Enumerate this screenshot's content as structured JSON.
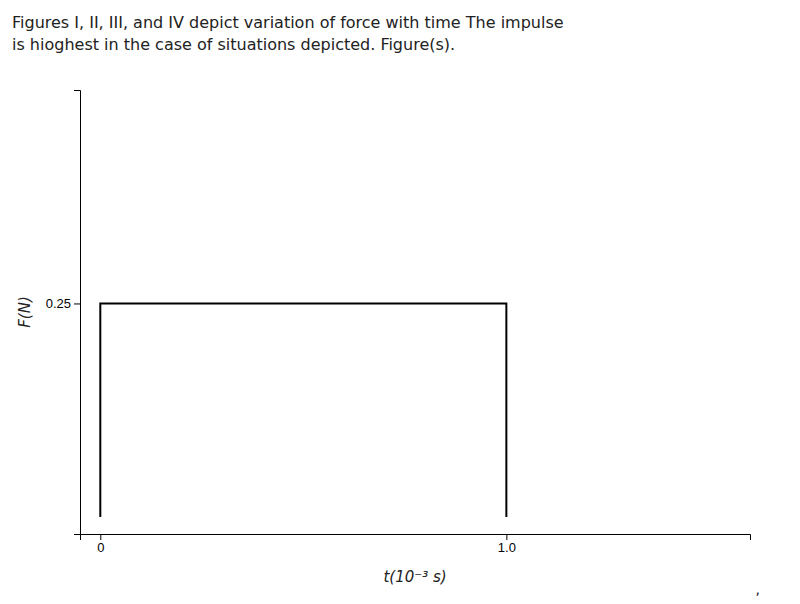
{
  "chart_data": {
    "type": "line",
    "title": "Figures I, II, III, and IV depict variation of force with time The impulse\nis hioghest in the case of situations depicted. Figure(s).",
    "x_label": "t(10⁻³ s)",
    "y_label": "F(N)",
    "x": [
      0,
      0,
      1.0,
      1.0
    ],
    "values": [
      0,
      0.25,
      0.25,
      0
    ],
    "color": "#000000",
    "xlim": [
      -0.05,
      1.6
    ],
    "ylim": [
      -0.02,
      0.5
    ],
    "xticks": [
      0,
      {
        "value": 1.0,
        "label": "1.0"
      }
    ],
    "yticks": [
      0.25
    ],
    "grid": false,
    "annotations": [
      ","
    ]
  }
}
